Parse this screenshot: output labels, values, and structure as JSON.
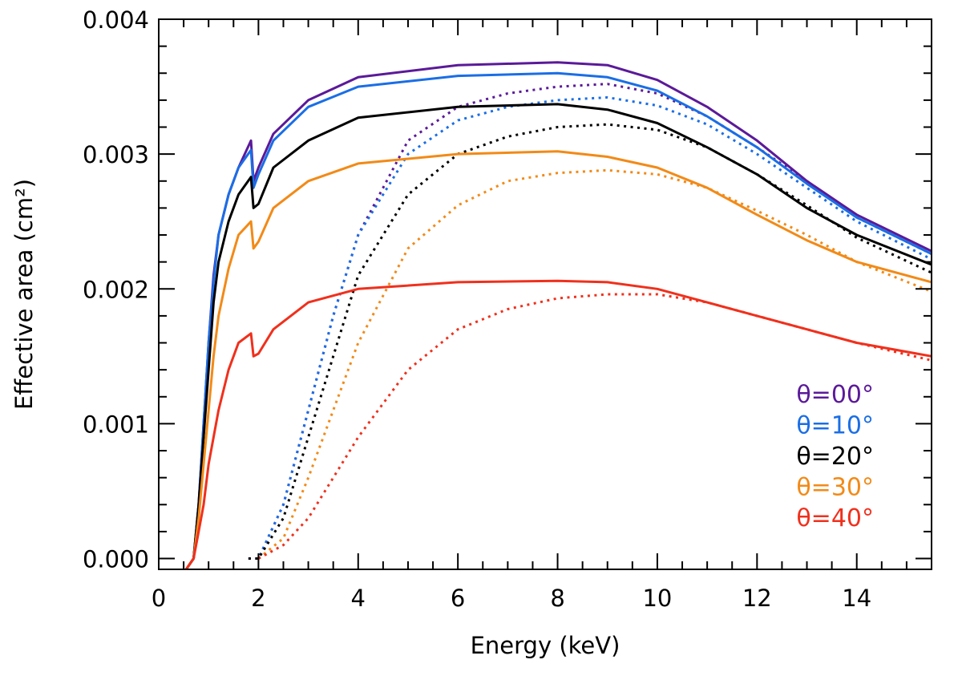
{
  "chart_data": {
    "type": "line",
    "xlabel": "Energy (keV)",
    "ylabel": "Effective area (cm²)",
    "xlim": [
      0,
      15.5
    ],
    "ylim": [
      -8e-05,
      0.004
    ],
    "x_ticks": [
      0,
      2,
      4,
      6,
      8,
      10,
      12,
      14
    ],
    "x_tick_labels": [
      "0",
      "2",
      "4",
      "6",
      "8",
      "10",
      "12",
      "14"
    ],
    "y_ticks": [
      0.0,
      0.001,
      0.002,
      0.003,
      0.004
    ],
    "y_tick_labels": [
      "0.000",
      "0.001",
      "0.002",
      "0.003",
      "0.004"
    ],
    "legend_placement": "bottom-right",
    "grid": false,
    "series": [
      {
        "name": "θ=00°",
        "color": "#5b1a99",
        "solid": [
          [
            0.55,
            -8e-05
          ],
          [
            0.7,
            0.0
          ],
          [
            0.8,
            0.0004
          ],
          [
            0.9,
            0.001
          ],
          [
            1.0,
            0.0016
          ],
          [
            1.1,
            0.0021
          ],
          [
            1.2,
            0.0024
          ],
          [
            1.4,
            0.0027
          ],
          [
            1.6,
            0.0029
          ],
          [
            1.85,
            0.0031
          ],
          [
            1.9,
            0.0028
          ],
          [
            2.0,
            0.0029
          ],
          [
            2.3,
            0.00315
          ],
          [
            3,
            0.0034
          ],
          [
            4,
            0.00357
          ],
          [
            6,
            0.00366
          ],
          [
            8,
            0.00368
          ],
          [
            9,
            0.00366
          ],
          [
            10,
            0.00355
          ],
          [
            11,
            0.00335
          ],
          [
            12,
            0.0031
          ],
          [
            13,
            0.0028
          ],
          [
            14,
            0.00255
          ],
          [
            15.5,
            0.00228
          ]
        ],
        "dotted": [
          [
            1.8,
            0.0
          ],
          [
            2.0,
            0.0
          ],
          [
            2.5,
            0.0004
          ],
          [
            3,
            0.0011
          ],
          [
            3.5,
            0.0018
          ],
          [
            4,
            0.0024
          ],
          [
            5,
            0.0031
          ],
          [
            6,
            0.00335
          ],
          [
            7,
            0.00345
          ],
          [
            8,
            0.0035
          ],
          [
            9,
            0.00352
          ],
          [
            10,
            0.00345
          ],
          [
            11,
            0.00328
          ],
          [
            12,
            0.00305
          ],
          [
            13,
            0.0028
          ],
          [
            14,
            0.00253
          ],
          [
            15.5,
            0.00226
          ]
        ]
      },
      {
        "name": "θ=10°",
        "color": "#1a6ee6",
        "solid": [
          [
            0.55,
            -8e-05
          ],
          [
            0.7,
            0.0
          ],
          [
            0.8,
            0.0004
          ],
          [
            0.9,
            0.001
          ],
          [
            1.0,
            0.0016
          ],
          [
            1.1,
            0.00205
          ],
          [
            1.2,
            0.0024
          ],
          [
            1.4,
            0.0027
          ],
          [
            1.6,
            0.0029
          ],
          [
            1.85,
            0.00303
          ],
          [
            1.9,
            0.00275
          ],
          [
            2.0,
            0.00285
          ],
          [
            2.3,
            0.0031
          ],
          [
            3,
            0.00335
          ],
          [
            4,
            0.0035
          ],
          [
            6,
            0.00358
          ],
          [
            8,
            0.0036
          ],
          [
            9,
            0.00357
          ],
          [
            10,
            0.00347
          ],
          [
            11,
            0.00328
          ],
          [
            12,
            0.00305
          ],
          [
            13,
            0.00278
          ],
          [
            14,
            0.00253
          ],
          [
            15.5,
            0.00226
          ]
        ],
        "dotted": [
          [
            1.8,
            0.0
          ],
          [
            2.0,
            0.0
          ],
          [
            2.5,
            0.0004
          ],
          [
            3,
            0.0011
          ],
          [
            3.5,
            0.0018
          ],
          [
            4,
            0.0024
          ],
          [
            5,
            0.003
          ],
          [
            6,
            0.00325
          ],
          [
            7,
            0.00335
          ],
          [
            8,
            0.0034
          ],
          [
            9,
            0.00342
          ],
          [
            10,
            0.00336
          ],
          [
            11,
            0.00322
          ],
          [
            12,
            0.003
          ],
          [
            13,
            0.00275
          ],
          [
            14,
            0.0025
          ],
          [
            15.5,
            0.00222
          ]
        ]
      },
      {
        "name": "θ=20°",
        "color": "#000000",
        "solid": [
          [
            0.55,
            -8e-05
          ],
          [
            0.7,
            0.0
          ],
          [
            0.8,
            0.0004
          ],
          [
            0.9,
            0.0009
          ],
          [
            1.0,
            0.0014
          ],
          [
            1.1,
            0.0019
          ],
          [
            1.2,
            0.0022
          ],
          [
            1.4,
            0.0025
          ],
          [
            1.6,
            0.0027
          ],
          [
            1.85,
            0.00283
          ],
          [
            1.9,
            0.0026
          ],
          [
            2.0,
            0.00263
          ],
          [
            2.3,
            0.0029
          ],
          [
            3,
            0.0031
          ],
          [
            4,
            0.00327
          ],
          [
            6,
            0.00335
          ],
          [
            8,
            0.00337
          ],
          [
            9,
            0.00333
          ],
          [
            10,
            0.00323
          ],
          [
            11,
            0.00305
          ],
          [
            12,
            0.00285
          ],
          [
            13,
            0.0026
          ],
          [
            14,
            0.0024
          ],
          [
            15.5,
            0.00218
          ]
        ],
        "dotted": [
          [
            1.8,
            0.0
          ],
          [
            2.0,
            0.0
          ],
          [
            2.5,
            0.0003
          ],
          [
            3,
            0.0009
          ],
          [
            3.5,
            0.0015
          ],
          [
            4,
            0.0021
          ],
          [
            5,
            0.0027
          ],
          [
            6,
            0.003
          ],
          [
            7,
            0.00313
          ],
          [
            8,
            0.0032
          ],
          [
            9,
            0.00322
          ],
          [
            10,
            0.00318
          ],
          [
            11,
            0.00305
          ],
          [
            12,
            0.00285
          ],
          [
            13,
            0.00262
          ],
          [
            14,
            0.00238
          ],
          [
            15.5,
            0.00212
          ]
        ]
      },
      {
        "name": "θ=30°",
        "color": "#f28a17",
        "solid": [
          [
            0.55,
            -8e-05
          ],
          [
            0.7,
            0.0
          ],
          [
            0.8,
            0.0003
          ],
          [
            0.9,
            0.0007
          ],
          [
            1.0,
            0.0011
          ],
          [
            1.1,
            0.0015
          ],
          [
            1.2,
            0.0018
          ],
          [
            1.4,
            0.00215
          ],
          [
            1.6,
            0.0024
          ],
          [
            1.85,
            0.0025
          ],
          [
            1.9,
            0.0023
          ],
          [
            2.0,
            0.00235
          ],
          [
            2.3,
            0.0026
          ],
          [
            3,
            0.0028
          ],
          [
            4,
            0.00293
          ],
          [
            6,
            0.003
          ],
          [
            8,
            0.00302
          ],
          [
            9,
            0.00298
          ],
          [
            10,
            0.0029
          ],
          [
            11,
            0.00275
          ],
          [
            12,
            0.00255
          ],
          [
            13,
            0.00236
          ],
          [
            14,
            0.0022
          ],
          [
            15.5,
            0.00205
          ]
        ],
        "dotted": [
          [
            2.0,
            0.0
          ],
          [
            2.5,
            0.00015
          ],
          [
            3,
            0.0006
          ],
          [
            3.5,
            0.0011
          ],
          [
            4,
            0.0016
          ],
          [
            5,
            0.0023
          ],
          [
            6,
            0.00262
          ],
          [
            7,
            0.0028
          ],
          [
            8,
            0.00286
          ],
          [
            9,
            0.00288
          ],
          [
            10,
            0.00285
          ],
          [
            11,
            0.00275
          ],
          [
            12,
            0.00258
          ],
          [
            13,
            0.0024
          ],
          [
            14,
            0.0022
          ],
          [
            15.5,
            0.00198
          ]
        ]
      },
      {
        "name": "θ=40°",
        "color": "#f0301c",
        "solid": [
          [
            0.55,
            -8e-05
          ],
          [
            0.7,
            0.0
          ],
          [
            0.8,
            0.0002
          ],
          [
            0.9,
            0.0004
          ],
          [
            1.0,
            0.0007
          ],
          [
            1.1,
            0.0009
          ],
          [
            1.2,
            0.0011
          ],
          [
            1.4,
            0.0014
          ],
          [
            1.6,
            0.0016
          ],
          [
            1.85,
            0.00167
          ],
          [
            1.9,
            0.0015
          ],
          [
            2.0,
            0.00152
          ],
          [
            2.3,
            0.0017
          ],
          [
            3,
            0.0019
          ],
          [
            4,
            0.002
          ],
          [
            6,
            0.00205
          ],
          [
            8,
            0.00206
          ],
          [
            9,
            0.00205
          ],
          [
            10,
            0.002
          ],
          [
            11,
            0.0019
          ],
          [
            12,
            0.0018
          ],
          [
            13,
            0.0017
          ],
          [
            14,
            0.0016
          ],
          [
            15.5,
            0.0015
          ]
        ],
        "dotted": [
          [
            2.0,
            0.0
          ],
          [
            2.5,
            0.0001
          ],
          [
            3,
            0.0003
          ],
          [
            3.5,
            0.0006
          ],
          [
            4,
            0.0009
          ],
          [
            5,
            0.0014
          ],
          [
            6,
            0.0017
          ],
          [
            7,
            0.00185
          ],
          [
            8,
            0.00193
          ],
          [
            9,
            0.00196
          ],
          [
            10,
            0.00196
          ],
          [
            11,
            0.0019
          ],
          [
            12,
            0.0018
          ],
          [
            13,
            0.0017
          ],
          [
            14,
            0.0016
          ],
          [
            15.5,
            0.00147
          ]
        ]
      }
    ]
  }
}
